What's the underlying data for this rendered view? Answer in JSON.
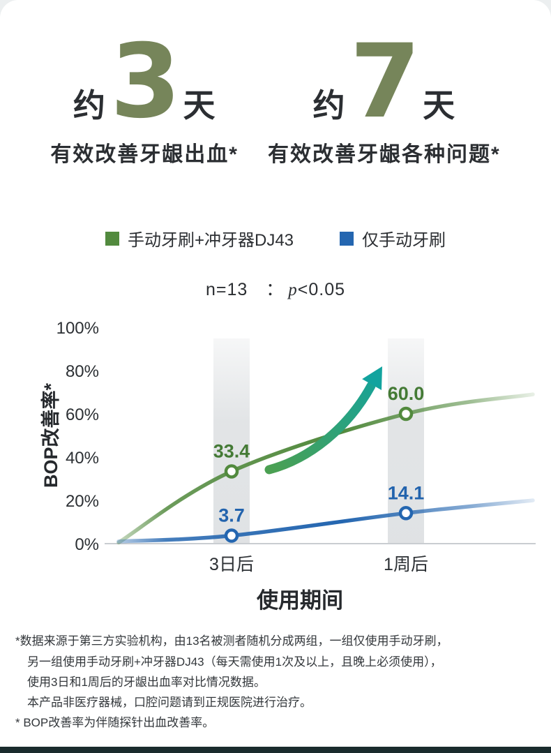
{
  "stats": [
    {
      "prefix": "约",
      "number": "3",
      "suffix": "天",
      "caption": "有效改善牙龈出血*"
    },
    {
      "prefix": "约",
      "number": "7",
      "suffix": "天",
      "caption": "有效改善牙龈各种问题*"
    }
  ],
  "chart_data": {
    "type": "line",
    "categories": [
      "3日后",
      "1周后"
    ],
    "series": [
      {
        "name": "手动牙刷+冲牙器DJ43",
        "values": [
          33.4,
          60.0
        ],
        "value_labels": [
          "33.4",
          "60.0"
        ],
        "color": "#528a3e",
        "label_color": "#447a35",
        "left_edge_value": 0.5,
        "right_edge_value": 69
      },
      {
        "name": "仅手动牙刷",
        "values": [
          3.7,
          14.1
        ],
        "value_labels": [
          "3.7",
          "14.1"
        ],
        "color": "#2466b0",
        "label_color": "#2263ad",
        "left_edge_value": 1,
        "right_edge_value": 20
      }
    ],
    "ylabel": "BOP改善率*",
    "xlabel": "使用期间",
    "ylim": [
      0,
      100
    ],
    "ytick_step": 20,
    "ytick_suffix": "%",
    "annotation": {
      "n": "n=13",
      "sep": "　：",
      "p_var": "p",
      "p_cmp": "<0.05"
    },
    "legend_position": "top",
    "grid": "baseline-only",
    "highlight_bands_at_categories": true,
    "arrow": {
      "color_start": "#4ba052",
      "color_end": "#12a39e"
    }
  },
  "footnotes": [
    "*数据来源于第三方实验机构，由13名被测者随机分成两组，一组仅使用手动牙刷，",
    "另一组使用手动牙刷+冲牙器DJ43（每天需使用1次及以上，且晚上必须使用），",
    "使用3日和1周后的牙龈出血率对比情况数据。",
    "本产品非医疗器械，口腔问题请到正规医院进行治疗。",
    "* BOP改善率为伴随探针出血改善率。"
  ],
  "colors": {
    "page_background": "#eceff0",
    "card_background": "#ffffff",
    "headline_number": "#76855a",
    "text_dark": "#2b2e32",
    "green_series": "#528a3e",
    "blue_series": "#2466b0",
    "band_gray": "#c6cbce",
    "bottom_bar": "#1a2b2d"
  }
}
